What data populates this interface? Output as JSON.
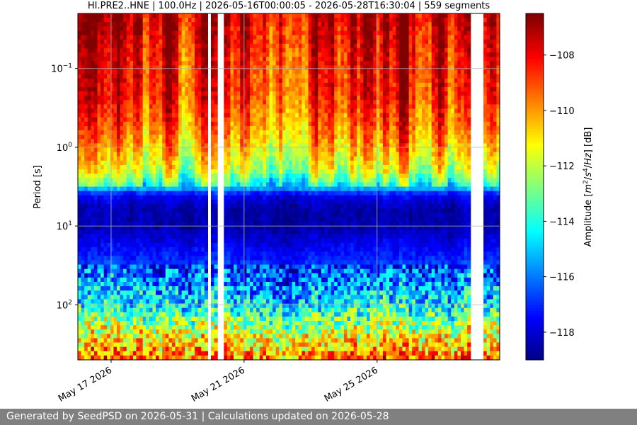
{
  "chart_data": {
    "type": "heatmap",
    "title": "HI.PRE2..HNE | 100.0Hz | 2026-05-16T00:00:05 - 2026-05-28T16:30:04 | 559 segments",
    "xlabel": "",
    "ylabel": "Period [s]",
    "colorbar_label": "Amplitude [m²/s⁴/Hz] [dB]",
    "x_start": "2026-05-16T00:00:05",
    "x_end": "2026-05-28T16:30:04",
    "x_ticks": [
      {
        "value": "2026-05-17",
        "label": "May 17 2026"
      },
      {
        "value": "2026-05-21",
        "label": "May 21 2026"
      },
      {
        "value": "2026-05-25",
        "label": "May 25 2026"
      }
    ],
    "y_scale": "log",
    "y_inverted": true,
    "ylim": [
      0.02,
      500
    ],
    "y_ticks": [
      {
        "value": 0.1,
        "base": "10",
        "exp": "−1"
      },
      {
        "value": 1,
        "base": "10",
        "exp": "0"
      },
      {
        "value": 10,
        "base": "10",
        "exp": "1"
      },
      {
        "value": 100,
        "base": "10",
        "exp": "2"
      }
    ],
    "clim": [
      -119,
      -106.5
    ],
    "colorbar_ticks": [
      "-108",
      "-110",
      "-112",
      "-114",
      "-116",
      "-118"
    ],
    "colormap": "jet",
    "grid": true,
    "data_gaps_days": [
      [
        3.92,
        4.0
      ],
      [
        4.21,
        4.38
      ],
      [
        11.85,
        12.16
      ]
    ],
    "profile_period_s": [
      0.02,
      0.05,
      0.1,
      0.2,
      0.5,
      1,
      2,
      3,
      4,
      6,
      10,
      20,
      50,
      100,
      200,
      500
    ],
    "profile_db": [
      -107.5,
      -108,
      -108.5,
      -108.5,
      -109.5,
      -110.5,
      -112,
      -114,
      -117.5,
      -118.5,
      -118.5,
      -117.5,
      -116,
      -114.5,
      -112,
      -109.5
    ]
  },
  "footer": {
    "text": "Generated by SeedPSD on 2026-05-31 | Calculations updated on 2026-05-28"
  }
}
